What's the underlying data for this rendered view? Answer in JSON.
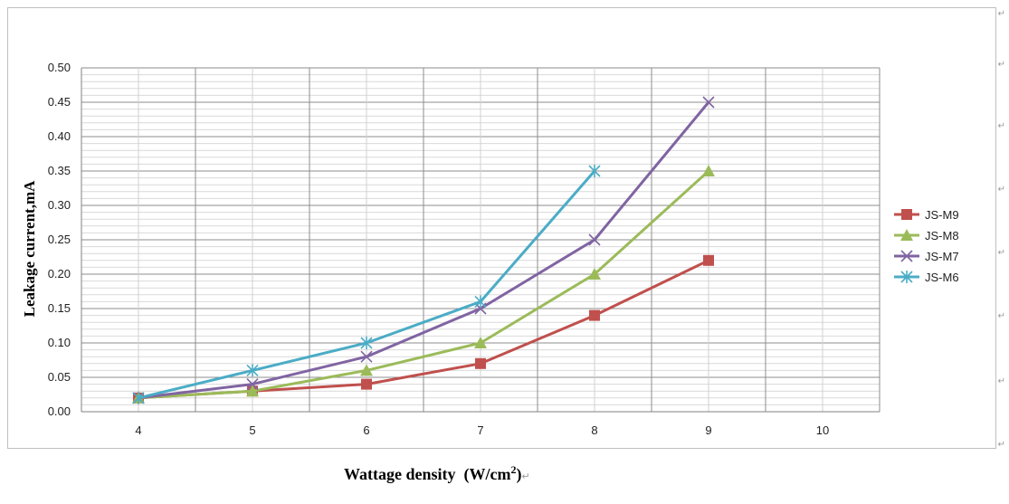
{
  "chart_data": {
    "type": "line",
    "x": [
      4,
      5,
      6,
      7,
      8,
      9
    ],
    "xticks": [
      "4",
      "5",
      "6",
      "7",
      "8",
      "9",
      "10"
    ],
    "ylim": [
      0,
      0.5
    ],
    "yticks": [
      "0.00",
      "0.05",
      "0.10",
      "0.15",
      "0.20",
      "0.25",
      "0.30",
      "0.35",
      "0.40",
      "0.45",
      "0.50"
    ],
    "ylabel": "Leakage current,mA",
    "xlabel_main": "Wattage density",
    "xlabel_unit": "(W/cm",
    "xlabel_sup": "2",
    "xlabel_close": ")",
    "grid": true,
    "legend_position": "right",
    "series": [
      {
        "name": "JS-M9",
        "color": "#c0504d",
        "marker": "square",
        "values": [
          0.02,
          0.03,
          0.04,
          0.07,
          0.14,
          0.22
        ]
      },
      {
        "name": "JS-M8",
        "color": "#9bbb59",
        "marker": "triangle",
        "values": [
          0.02,
          0.03,
          0.06,
          0.1,
          0.2,
          0.35
        ]
      },
      {
        "name": "JS-M7",
        "color": "#8064a2",
        "marker": "x",
        "values": [
          0.02,
          0.04,
          0.08,
          0.15,
          0.25,
          0.45
        ]
      },
      {
        "name": "JS-M6",
        "color": "#4bacc6",
        "marker": "star",
        "values": [
          0.02,
          0.06,
          0.1,
          0.16,
          0.35,
          null
        ]
      }
    ]
  },
  "paragraph_mark": "↵"
}
